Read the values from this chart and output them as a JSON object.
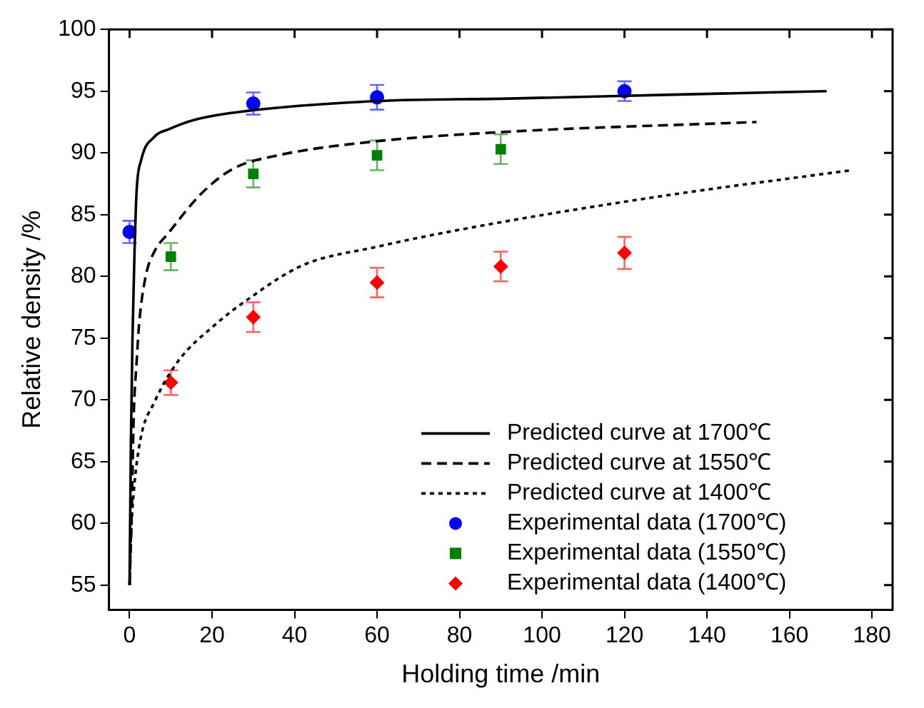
{
  "chart_data": {
    "type": "line",
    "xlabel": "Holding time /min",
    "ylabel": "Relative density /%",
    "xlim": [
      -5,
      185
    ],
    "ylim": [
      53,
      100
    ],
    "xticks": [
      0,
      20,
      40,
      60,
      80,
      100,
      120,
      140,
      160,
      180
    ],
    "yticks": [
      55,
      60,
      65,
      70,
      75,
      80,
      85,
      90,
      95,
      100
    ],
    "grid": false,
    "legend": "bottom right",
    "series": [
      {
        "name": "Predicted curve at 1700℃",
        "type": "line",
        "line_style": "solid",
        "marker": "none",
        "color": "#000000",
        "x": [
          0,
          0.3,
          0.7,
          1.2,
          1.7,
          2.8,
          6,
          9.4,
          16,
          28.5,
          60,
          92,
          130,
          169
        ],
        "values": [
          55,
          66,
          75,
          82,
          86.9,
          89.4,
          91.3,
          91.9,
          92.7,
          93.4,
          94.2,
          94.4,
          94.7,
          95.0
        ]
      },
      {
        "name": "Predicted curve at 1550℃",
        "type": "line",
        "line_style": "dashed",
        "marker": "none",
        "color": "#000000",
        "x": [
          0,
          0.5,
          1,
          1.7,
          2.3,
          3.9,
          6,
          9.4,
          17.4,
          25,
          36,
          58.7,
          91,
          152
        ],
        "values": [
          55,
          60.6,
          68.7,
          73,
          76.1,
          80,
          82,
          83.5,
          86.7,
          88.7,
          89.8,
          90.9,
          91.7,
          92.5
        ]
      },
      {
        "name": "Predicted curve at 1400℃",
        "type": "line",
        "line_style": "dotted",
        "marker": "none",
        "color": "#000000",
        "x": [
          0,
          0.3,
          1,
          2.7,
          6,
          11.7,
          20.8,
          28.5,
          42,
          60,
          82,
          127,
          175
        ],
        "values": [
          55,
          58.7,
          62.5,
          66.9,
          69.8,
          73.1,
          76.1,
          78.1,
          80.9,
          82.4,
          83.9,
          86.4,
          88.6
        ]
      },
      {
        "name": "Experimental data (1700℃)",
        "type": "scatter",
        "marker": "circle",
        "color": "#0000ff",
        "x": [
          0,
          30,
          60,
          120
        ],
        "values": [
          83.6,
          94.0,
          94.5,
          95.0
        ],
        "errors": [
          0.9,
          0.9,
          1.0,
          0.8
        ]
      },
      {
        "name": "Experimental data (1550℃)",
        "type": "scatter",
        "marker": "square",
        "color": "#008000",
        "x": [
          10,
          30,
          60,
          90
        ],
        "values": [
          81.6,
          88.3,
          89.8,
          90.3
        ],
        "errors": [
          1.1,
          1.1,
          1.2,
          1.2
        ]
      },
      {
        "name": "Experimental data (1400℃)",
        "type": "scatter",
        "marker": "diamond",
        "color": "#ff0000",
        "x": [
          10,
          30,
          60,
          90,
          120
        ],
        "values": [
          71.4,
          76.7,
          79.5,
          80.8,
          81.9
        ],
        "errors": [
          1.0,
          1.2,
          1.2,
          1.2,
          1.3
        ]
      }
    ]
  }
}
